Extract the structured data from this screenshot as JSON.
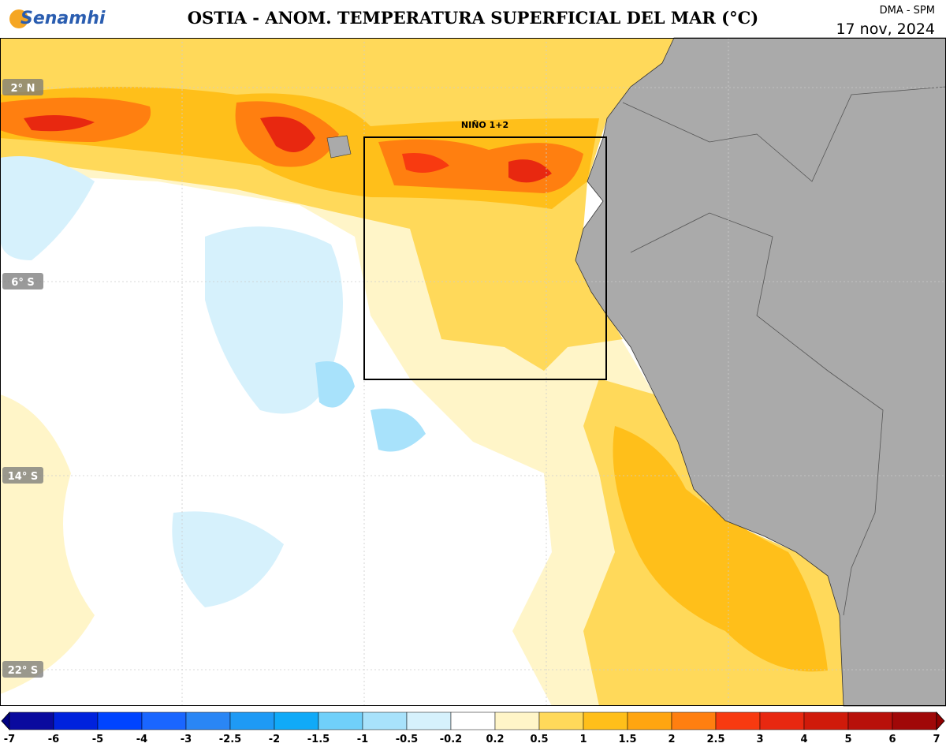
{
  "header": {
    "logo": "Senamhi",
    "title": "OSTIA - ANOM. TEMPERATURA SUPERFICIAL DEL MAR (°C)",
    "source": "DMA - SPM",
    "date": "17 nov, 2024"
  },
  "map": {
    "latitude_labels": [
      "2° N",
      "6° S",
      "14° S",
      "22° S"
    ],
    "region_label": "NIÑO 1+2"
  },
  "colorbar": {
    "ticks": [
      "-7",
      "-6",
      "-5",
      "-4",
      "-3",
      "-2.5",
      "-2",
      "-1.5",
      "-1",
      "-0.5",
      "-0.2",
      "0.2",
      "0.5",
      "1",
      "1.5",
      "2",
      "2.5",
      "3",
      "4",
      "5",
      "6",
      "7"
    ],
    "colors": [
      "#0a0a9e",
      "#0022dd",
      "#0044ff",
      "#1a66ff",
      "#2a86f5",
      "#1e9af5",
      "#10aaf8",
      "#70d0fa",
      "#a8e2fb",
      "#d6f1fc",
      "#ffffff",
      "#fff5c8",
      "#ffd95a",
      "#ffbf1a",
      "#ffa510",
      "#ff7f10",
      "#f83a10",
      "#e82810",
      "#d01a0a",
      "#b8100a",
      "#a00808"
    ],
    "under_color": "#000080",
    "over_color": "#900000"
  }
}
